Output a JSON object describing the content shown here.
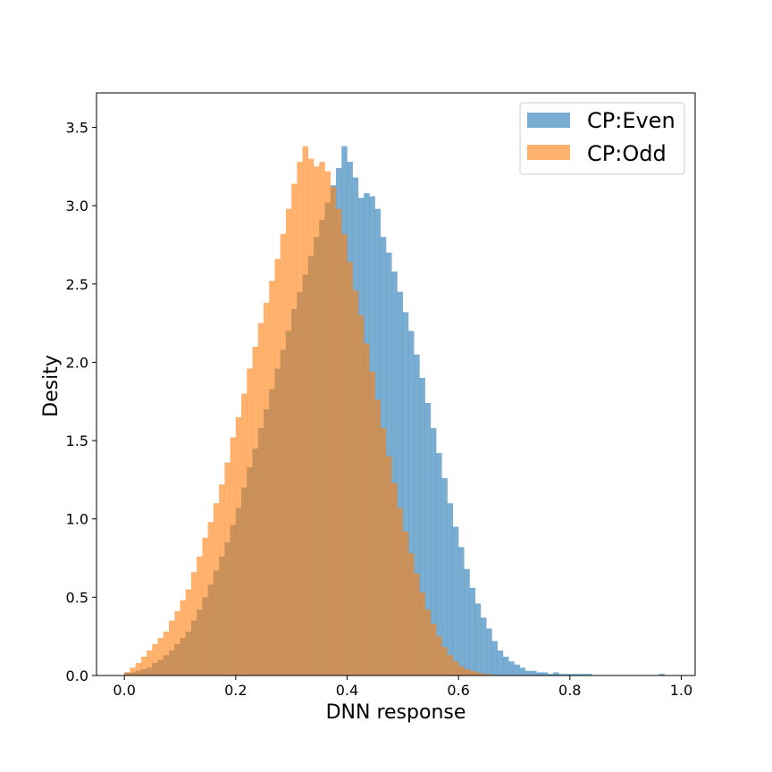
{
  "chart_data": {
    "type": "histogram",
    "title": "",
    "xlabel": "DNN response",
    "ylabel": "Desity",
    "xlim": [
      -0.05,
      1.025
    ],
    "ylim": [
      0,
      3.72
    ],
    "xticks": [
      "0.0",
      "0.2",
      "0.4",
      "0.6",
      "0.8",
      "1.0"
    ],
    "yticks": [
      "0.0",
      "0.5",
      "1.0",
      "1.5",
      "2.0",
      "2.5",
      "3.0",
      "3.5"
    ],
    "grid": false,
    "legend_position": "upper right",
    "bin_start": 0.0,
    "bin_width": 0.01,
    "series": [
      {
        "name": "CP:Even",
        "color": "#1f77b4",
        "alpha": 0.6,
        "values": [
          0.02,
          0.02,
          0.03,
          0.04,
          0.05,
          0.08,
          0.1,
          0.13,
          0.16,
          0.2,
          0.24,
          0.28,
          0.35,
          0.42,
          0.5,
          0.58,
          0.67,
          0.76,
          0.85,
          0.96,
          1.07,
          1.2,
          1.33,
          1.45,
          1.58,
          1.7,
          1.83,
          1.96,
          2.08,
          2.2,
          2.34,
          2.45,
          2.56,
          2.68,
          2.8,
          2.91,
          3.02,
          3.13,
          3.24,
          3.38,
          3.28,
          3.18,
          3.05,
          3.08,
          3.06,
          2.98,
          2.8,
          2.7,
          2.58,
          2.45,
          2.32,
          2.2,
          2.05,
          1.9,
          1.74,
          1.58,
          1.42,
          1.26,
          1.1,
          0.95,
          0.82,
          0.68,
          0.56,
          0.46,
          0.37,
          0.3,
          0.22,
          0.16,
          0.12,
          0.09,
          0.07,
          0.05,
          0.03,
          0.03,
          0.02,
          0.02,
          0.01,
          0.02,
          0.01,
          0.01,
          0.01,
          0.01,
          0.01,
          0.01,
          0.0,
          0.0,
          0.0,
          0.0,
          0.0,
          0.0,
          0.0,
          0.0,
          0.0,
          0.0,
          0.0,
          0.0,
          0.01,
          0.0,
          0.0,
          0.0
        ]
      },
      {
        "name": "CP:Odd",
        "color": "#ff7f0e",
        "alpha": 0.6,
        "values": [
          0.02,
          0.05,
          0.08,
          0.12,
          0.16,
          0.2,
          0.24,
          0.28,
          0.35,
          0.41,
          0.48,
          0.55,
          0.66,
          0.76,
          0.88,
          0.98,
          1.1,
          1.22,
          1.36,
          1.52,
          1.65,
          1.8,
          1.96,
          2.1,
          2.25,
          2.38,
          2.52,
          2.66,
          2.82,
          2.98,
          3.14,
          3.28,
          3.38,
          3.3,
          3.25,
          3.28,
          3.22,
          3.12,
          2.98,
          2.82,
          2.64,
          2.46,
          2.3,
          2.12,
          1.94,
          1.76,
          1.58,
          1.4,
          1.23,
          1.07,
          0.92,
          0.78,
          0.65,
          0.53,
          0.42,
          0.33,
          0.25,
          0.18,
          0.13,
          0.09,
          0.06,
          0.04,
          0.03,
          0.02,
          0.01,
          0.01,
          0.0,
          0.0,
          0.0,
          0.0,
          0.0,
          0.0,
          0.0,
          0.0,
          0.0,
          0.0,
          0.0,
          0.0,
          0.0,
          0.0,
          0.0,
          0.0,
          0.0,
          0.0,
          0.0,
          0.0,
          0.0,
          0.0,
          0.0,
          0.0,
          0.0,
          0.0,
          0.0,
          0.0,
          0.0,
          0.0,
          0.0,
          0.0,
          0.0,
          0.0
        ]
      }
    ]
  }
}
